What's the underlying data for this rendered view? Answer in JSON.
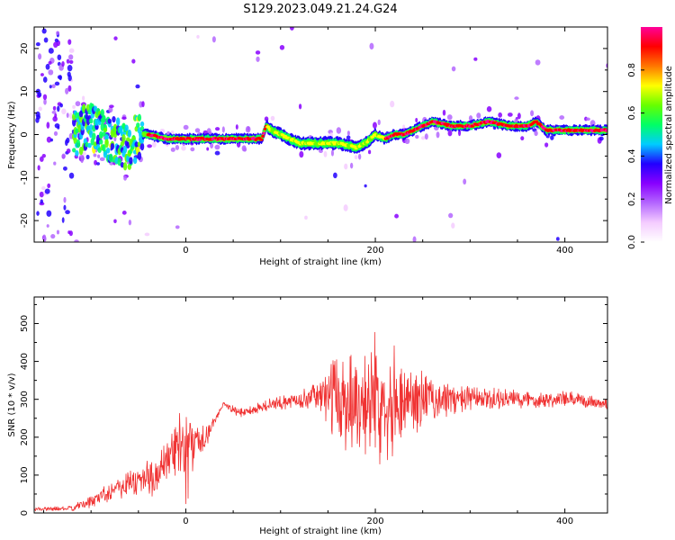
{
  "title": "S129.2023.049.21.24.G24",
  "chart_data": [
    {
      "type": "heatmap",
      "name": "spectrogram",
      "xlabel": "Height of straight line (km)",
      "ylabel": "Frequency (Hz)",
      "xlim": [
        -160,
        445
      ],
      "ylim": [
        -25,
        25
      ],
      "xticks": [
        0,
        200,
        400
      ],
      "yticks": [
        -20,
        -10,
        0,
        10,
        20
      ],
      "colorbar": {
        "label": "Normalized spectral amplitude",
        "range": [
          0,
          1
        ],
        "ticks": [
          "0.0",
          "0.2",
          "0.4",
          "0.6",
          "0.8"
        ],
        "colors": [
          "#ffffff",
          "#f4ccff",
          "#b466ff",
          "#8800ff",
          "#2200ff",
          "#00ccff",
          "#00ff66",
          "#66ff00",
          "#ffff00",
          "#ff7700",
          "#ff0000",
          "#ff0099"
        ]
      },
      "ridge_frequency_hz": {
        "x": [
          -120,
          -100,
          -80,
          -60,
          -50,
          -40,
          -20,
          0,
          20,
          40,
          60,
          80,
          85,
          90,
          100,
          120,
          140,
          160,
          180,
          190,
          200,
          210,
          220,
          230,
          240,
          250,
          260,
          280,
          300,
          320,
          340,
          360,
          370,
          380,
          400,
          420,
          445
        ],
        "y": [
          0,
          2,
          -1,
          -3,
          0,
          0,
          -1,
          -1,
          -1,
          -1,
          -1,
          -1,
          2,
          1,
          0,
          -2,
          -2,
          -2,
          -3,
          -2,
          0,
          -1,
          0,
          0,
          1,
          2,
          3,
          2,
          2,
          3,
          2,
          2,
          3,
          1,
          1,
          1,
          1
        ]
      }
    },
    {
      "type": "line",
      "name": "snr",
      "xlabel": "Height of straight line (km)",
      "ylabel": "SNR (10 * v/v)",
      "xlim": [
        -160,
        445
      ],
      "ylim": [
        0,
        570
      ],
      "xticks": [
        0,
        200,
        400
      ],
      "yticks": [
        0,
        100,
        200,
        300,
        400,
        500
      ],
      "color": "#f03333",
      "mean_envelope": {
        "x": [
          -160,
          -120,
          -100,
          -80,
          -60,
          -40,
          -20,
          -10,
          0,
          10,
          20,
          30,
          40,
          50,
          60,
          80,
          100,
          120,
          140,
          150,
          160,
          180,
          200,
          220,
          240,
          260,
          280,
          300,
          320,
          340,
          360,
          380,
          400,
          420,
          445
        ],
        "mean": [
          10,
          12,
          30,
          60,
          80,
          90,
          120,
          170,
          180,
          180,
          200,
          240,
          290,
          270,
          265,
          280,
          290,
          300,
          310,
          310,
          300,
          300,
          300,
          300,
          300,
          300,
          300,
          300,
          300,
          300,
          300,
          300,
          300,
          295,
          290
        ],
        "spread": [
          5,
          8,
          20,
          30,
          45,
          60,
          80,
          110,
          100,
          60,
          40,
          10,
          10,
          15,
          15,
          20,
          20,
          25,
          40,
          90,
          150,
          170,
          180,
          160,
          110,
          70,
          50,
          40,
          35,
          30,
          30,
          25,
          25,
          20,
          20
        ]
      }
    }
  ]
}
